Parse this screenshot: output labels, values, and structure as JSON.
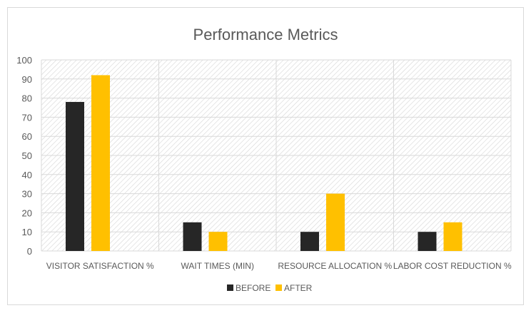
{
  "chart_data": {
    "type": "bar",
    "title": "Performance Metrics",
    "categories": [
      "VISITOR SATISFACTION %",
      "WAIT TIMES (MIN)",
      "RESOURCE ALLOCATION %",
      "LABOR COST REDUCTION %"
    ],
    "series": [
      {
        "name": "BEFORE",
        "values": [
          78,
          15,
          10,
          10
        ],
        "color": "#262626"
      },
      {
        "name": "AFTER",
        "values": [
          92,
          10,
          30,
          15
        ],
        "color": "#FFC000"
      }
    ],
    "ylim": [
      0,
      100
    ],
    "yticks": [
      0,
      10,
      20,
      30,
      40,
      50,
      60,
      70,
      80,
      90,
      100
    ],
    "xlabel": "",
    "ylabel": "",
    "grid": true,
    "legend": "bottom",
    "background": "diagonal hatch"
  }
}
